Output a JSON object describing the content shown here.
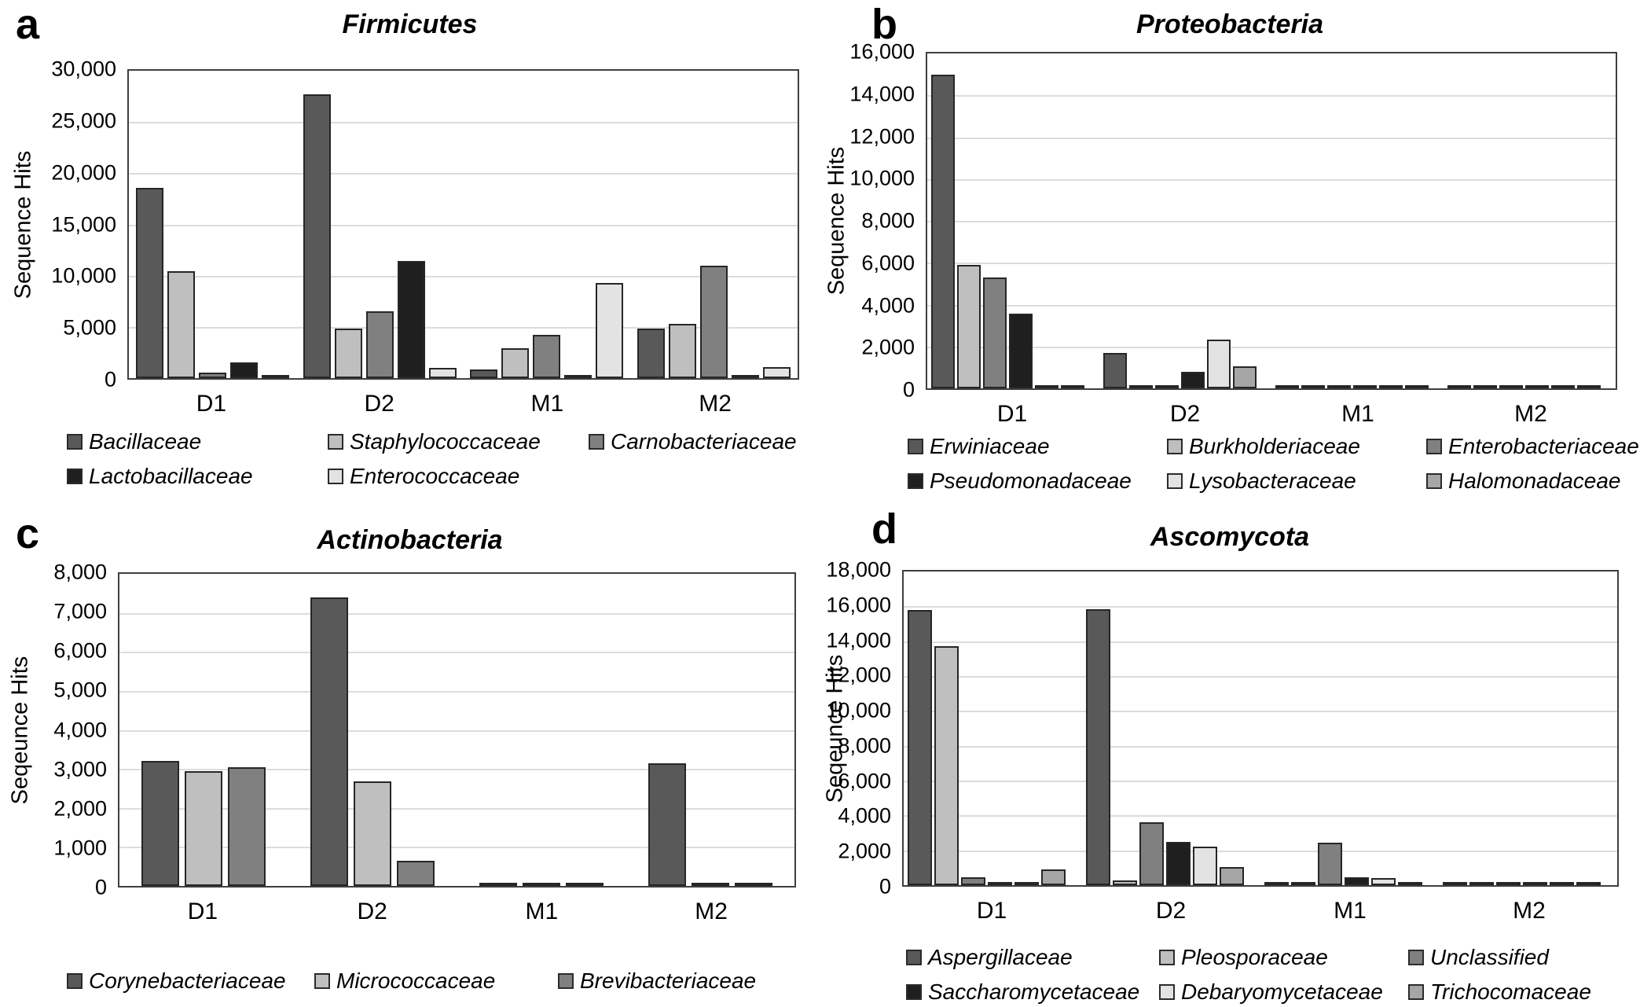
{
  "figure": {
    "background": "#ffffff",
    "categories": [
      "D1",
      "D2",
      "M1",
      "M2"
    ]
  },
  "styles": {
    "bar_border": "#262626",
    "grid_color": "#dcdcdc",
    "plot_border": "#3f3f3f",
    "text_color": "#000000"
  },
  "chart_data": [
    {
      "type": "bar",
      "panel_letter": "a",
      "title": "Firmicutes",
      "ylabel": "Sequence Hits",
      "xlabel": "",
      "categories": [
        "D1",
        "D2",
        "M1",
        "M2"
      ],
      "ylim": [
        0,
        30000
      ],
      "ytick_step": 5000,
      "ytick_labels": [
        "30,000",
        "25,000",
        "20,000",
        "15,000",
        "10,000",
        "5,000",
        "0"
      ],
      "grid": true,
      "legend_position": "bottom",
      "series": [
        {
          "name": "Bacillaceae",
          "color": "#595959",
          "values": [
            18600,
            27700,
            850,
            4800
          ]
        },
        {
          "name": "Staphylococcaceae",
          "color": "#bfbfbf",
          "values": [
            10400,
            4800,
            2900,
            5300
          ]
        },
        {
          "name": "Carnobacteriaceae",
          "color": "#808080",
          "values": [
            550,
            6500,
            4200,
            11000
          ]
        },
        {
          "name": "Lactobacillaceae",
          "color": "#1f1f1f",
          "values": [
            1500,
            11400,
            300,
            300
          ]
        },
        {
          "name": "Enterococcaceae",
          "color": "#e3e3e3",
          "values": [
            150,
            1000,
            9300,
            1100
          ]
        }
      ]
    },
    {
      "type": "bar",
      "panel_letter": "b",
      "title": "Proteobacteria",
      "ylabel": "Sequence Hits",
      "xlabel": "",
      "categories": [
        "D1",
        "D2",
        "M1",
        "M2"
      ],
      "ylim": [
        0,
        16000
      ],
      "ytick_step": 2000,
      "ytick_labels": [
        "16,000",
        "14,000",
        "12,000",
        "10,000",
        "8,000",
        "6,000",
        "4,000",
        "2,000",
        "0"
      ],
      "grid": true,
      "legend_position": "bottom",
      "series": [
        {
          "name": "Erwiniaceae",
          "color": "#595959",
          "values": [
            15000,
            1700,
            60,
            60
          ]
        },
        {
          "name": "Burkholderiaceae",
          "color": "#bfbfbf",
          "values": [
            5900,
            70,
            60,
            60
          ]
        },
        {
          "name": "Enterobacteriaceae",
          "color": "#808080",
          "values": [
            5300,
            70,
            60,
            60
          ]
        },
        {
          "name": "Pseudomonadaceae",
          "color": "#1f1f1f",
          "values": [
            3550,
            780,
            60,
            60
          ]
        },
        {
          "name": "Lysobacteraceae",
          "color": "#e3e3e3",
          "values": [
            60,
            2330,
            60,
            40
          ]
        },
        {
          "name": "Halomonadaceae",
          "color": "#a6a6a6",
          "values": [
            60,
            1050,
            60,
            60
          ]
        }
      ]
    },
    {
      "type": "bar",
      "panel_letter": "c",
      "title": "Actinobacteria",
      "ylabel": "Seqeunce Hits",
      "xlabel": "",
      "categories": [
        "D1",
        "D2",
        "M1",
        "M2"
      ],
      "ylim": [
        0,
        8000
      ],
      "ytick_step": 1000,
      "ytick_labels": [
        "8,000",
        "7,000",
        "6,000",
        "5,000",
        "4,000",
        "3,000",
        "2,000",
        "1,000",
        "0"
      ],
      "grid": true,
      "legend_position": "bottom",
      "series": [
        {
          "name": "Corynebacteriaceae",
          "color": "#595959",
          "values": [
            3200,
            7400,
            45,
            3150
          ]
        },
        {
          "name": "Micrococcaceae",
          "color": "#bfbfbf",
          "values": [
            2950,
            2680,
            45,
            90
          ]
        },
        {
          "name": "Brevibacteriaceae",
          "color": "#808080",
          "values": [
            3040,
            640,
            15,
            45
          ]
        }
      ]
    },
    {
      "type": "bar",
      "panel_letter": "d",
      "title": "Ascomycota",
      "ylabel": "Seqeunce Hits",
      "xlabel": "",
      "categories": [
        "D1",
        "D2",
        "M1",
        "M2"
      ],
      "ylim": [
        0,
        18000
      ],
      "ytick_step": 2000,
      "ytick_labels": [
        "18,000",
        "16,000",
        "14,000",
        "12,000",
        "10,000",
        "8,000",
        "6,000",
        "4,000",
        "2,000",
        "0"
      ],
      "grid": true,
      "legend_position": "bottom",
      "series": [
        {
          "name": "Aspergillaceae",
          "color": "#595959",
          "values": [
            15800,
            15850,
            90,
            70
          ]
        },
        {
          "name": "Pleosporaceae",
          "color": "#bfbfbf",
          "values": [
            13700,
            250,
            70,
            70
          ]
        },
        {
          "name": "Unclassified",
          "color": "#808080",
          "values": [
            450,
            3600,
            2450,
            70
          ]
        },
        {
          "name": "Saccharomycetaceae",
          "color": "#1f1f1f",
          "values": [
            80,
            2500,
            450,
            70
          ]
        },
        {
          "name": "Debaryomycetaceae",
          "color": "#e3e3e3",
          "values": [
            80,
            2200,
            400,
            70
          ]
        },
        {
          "name": "Trichocomaceae",
          "color": "#a6a6a6",
          "values": [
            900,
            1050,
            80,
            70
          ]
        }
      ]
    }
  ]
}
